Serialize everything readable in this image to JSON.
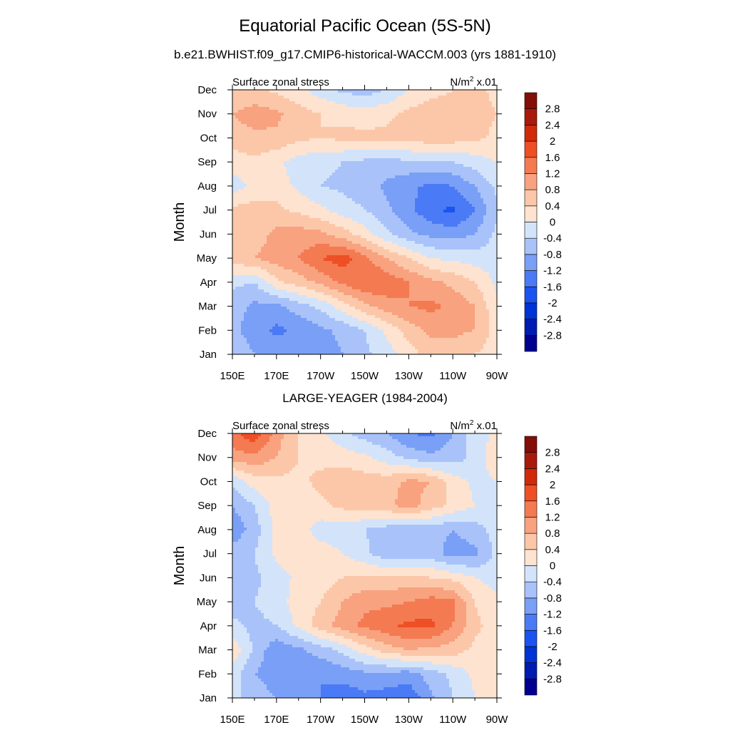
{
  "figure": {
    "title": "Equatorial Pacific Ocean (5S-5N)"
  },
  "colorbar": {
    "levels": [
      "-2.8",
      "-2.4",
      "-2",
      "-1.6",
      "-1.2",
      "-0.8",
      "-0.4",
      "0",
      "0.4",
      "0.8",
      "1.2",
      "1.6",
      "2",
      "2.4",
      "2.8"
    ],
    "colors": [
      "#00008f",
      "#001bb0",
      "#0033d6",
      "#1a53f0",
      "#4a7af5",
      "#7a9ff6",
      "#a9c3fa",
      "#d3e4fa",
      "#fde3d0",
      "#fcc7a9",
      "#f8a27f",
      "#f47a52",
      "#ee4f24",
      "#d12a08",
      "#a81b0b",
      "#840e08"
    ]
  },
  "chart_data": [
    {
      "type": "heatmap",
      "title": "b.e21.BWHIST.f09_g17.CMIP6-historical-WACCM.003 (yrs 1881-1910)",
      "left_label": "Surface zonal stress",
      "units": "N/m",
      "units_exp": "2",
      "units_suffix": " x.01",
      "xlabel": "",
      "ylabel": "Month",
      "x_ticks": [
        "150E",
        "170E",
        "170W",
        "150W",
        "130W",
        "110W",
        "90W"
      ],
      "y_ticks": [
        "Jan",
        "Feb",
        "Mar",
        "Apr",
        "May",
        "Jun",
        "Jul",
        "Aug",
        "Sep",
        "Oct",
        "Nov",
        "Dec"
      ],
      "x_lon": [
        150,
        160,
        170,
        180,
        190,
        200,
        210,
        220,
        230,
        240,
        250,
        260,
        270
      ],
      "values": [
        [
          -0.5,
          -0.8,
          -0.9,
          -1.2,
          -1.0,
          -0.8,
          -0.5,
          -0.2,
          0.2,
          0.6,
          0.6,
          0.4,
          0.2
        ],
        [
          -0.7,
          -1.0,
          -1.3,
          -1.1,
          -0.9,
          -0.7,
          -0.4,
          0.1,
          0.6,
          0.9,
          0.9,
          0.8,
          0.2
        ],
        [
          -0.6,
          -0.9,
          -0.9,
          -0.6,
          -0.3,
          0.2,
          0.7,
          1.0,
          1.2,
          1.3,
          1.1,
          0.8,
          0.1
        ],
        [
          -0.3,
          -0.4,
          0.3,
          0.6,
          0.9,
          1.3,
          1.6,
          1.5,
          1.2,
          0.9,
          0.7,
          0.4,
          -0.1
        ],
        [
          0.6,
          0.8,
          1.0,
          1.2,
          1.6,
          1.8,
          1.3,
          0.8,
          0.4,
          0.0,
          -0.1,
          -0.2,
          -0.2
        ],
        [
          0.5,
          0.6,
          0.9,
          1.0,
          0.9,
          0.6,
          0.2,
          -0.3,
          -0.7,
          -0.9,
          -1.0,
          -0.8,
          -0.3
        ],
        [
          0.5,
          0.6,
          0.5,
          0.3,
          0.1,
          -0.2,
          -0.4,
          -0.7,
          -1.1,
          -1.5,
          -1.7,
          -1.2,
          -0.5
        ],
        [
          -0.2,
          0.1,
          0.2,
          -0.1,
          -0.4,
          -0.5,
          -0.6,
          -0.9,
          -1.1,
          -1.3,
          -1.2,
          -0.8,
          -0.3
        ],
        [
          0.2,
          0.3,
          0.1,
          -0.2,
          -0.3,
          -0.4,
          -0.5,
          -0.5,
          -0.5,
          -0.4,
          -0.4,
          -0.2,
          0.0
        ],
        [
          0.6,
          0.7,
          0.7,
          0.5,
          0.4,
          0.5,
          0.5,
          0.5,
          0.6,
          0.6,
          0.6,
          0.5,
          0.3
        ],
        [
          0.8,
          1.0,
          0.9,
          0.6,
          0.4,
          0.3,
          0.2,
          0.3,
          0.5,
          0.7,
          0.7,
          0.6,
          0.4
        ],
        [
          0.4,
          0.5,
          0.3,
          0.1,
          -0.2,
          -0.5,
          -0.6,
          -0.4,
          0.0,
          0.2,
          0.4,
          0.5,
          0.3
        ]
      ]
    },
    {
      "type": "heatmap",
      "title": "LARGE-YEAGER (1984-2004)",
      "left_label": "Surface zonal stress",
      "units": "N/m",
      "units_exp": "2",
      "units_suffix": " x.01",
      "xlabel": "",
      "ylabel": "Month",
      "x_ticks": [
        "150E",
        "170E",
        "170W",
        "150W",
        "130W",
        "110W",
        "90W"
      ],
      "y_ticks": [
        "Jan",
        "Feb",
        "Mar",
        "Apr",
        "May",
        "Jun",
        "Jul",
        "Aug",
        "Sep",
        "Oct",
        "Nov",
        "Dec"
      ],
      "x_lon": [
        150,
        160,
        170,
        180,
        190,
        200,
        210,
        220,
        230,
        240,
        250,
        260,
        270
      ],
      "values": [
        [
          -0.3,
          -0.6,
          -0.8,
          -1.0,
          -1.2,
          -1.5,
          -1.3,
          -1.4,
          -1.5,
          -0.9,
          -0.4,
          0.0,
          0.2
        ],
        [
          -0.2,
          -0.8,
          -1.0,
          -1.0,
          -1.2,
          -1.0,
          -0.9,
          -0.9,
          -1.0,
          -0.6,
          -0.3,
          0.1,
          0.3
        ],
        [
          0.3,
          -0.5,
          -1.1,
          -0.9,
          -0.6,
          -0.3,
          0.2,
          0.6,
          0.8,
          0.7,
          0.6,
          0.3,
          0.2
        ],
        [
          -0.3,
          -0.5,
          -0.4,
          0.1,
          0.6,
          1.0,
          1.3,
          1.5,
          1.7,
          1.7,
          1.2,
          0.5,
          0.2
        ],
        [
          -0.6,
          -0.4,
          -0.2,
          0.2,
          0.4,
          0.8,
          1.1,
          1.1,
          1.2,
          1.4,
          1.3,
          0.4,
          0.1
        ],
        [
          -0.7,
          -0.5,
          -0.2,
          0.1,
          0.2,
          0.4,
          0.5,
          0.5,
          0.5,
          0.4,
          0.3,
          0.0,
          -0.2
        ],
        [
          -0.6,
          -0.4,
          0.1,
          0.3,
          0.2,
          0.0,
          -0.3,
          -0.7,
          -0.7,
          -0.6,
          -1.0,
          -0.9,
          -0.3
        ],
        [
          -1.1,
          -0.6,
          0.1,
          0.2,
          -0.2,
          -0.2,
          -0.4,
          -0.6,
          -0.7,
          -0.6,
          -0.8,
          -0.6,
          -0.2
        ],
        [
          -0.8,
          -0.4,
          0.2,
          0.2,
          0.3,
          0.5,
          0.6,
          0.7,
          1.0,
          0.6,
          0.3,
          0.0,
          -0.1
        ],
        [
          -0.3,
          0.2,
          0.3,
          0.3,
          0.5,
          0.7,
          0.6,
          0.6,
          0.9,
          0.8,
          0.2,
          -0.1,
          0.0
        ],
        [
          1.0,
          1.1,
          0.8,
          0.4,
          0.3,
          0.2,
          0.1,
          -0.2,
          -0.5,
          -0.7,
          -0.6,
          -0.3,
          0.3
        ],
        [
          1.5,
          1.9,
          1.0,
          0.4,
          0.1,
          -0.3,
          -0.6,
          -0.8,
          -1.2,
          -1.3,
          -0.8,
          -0.2,
          0.1
        ]
      ]
    }
  ]
}
